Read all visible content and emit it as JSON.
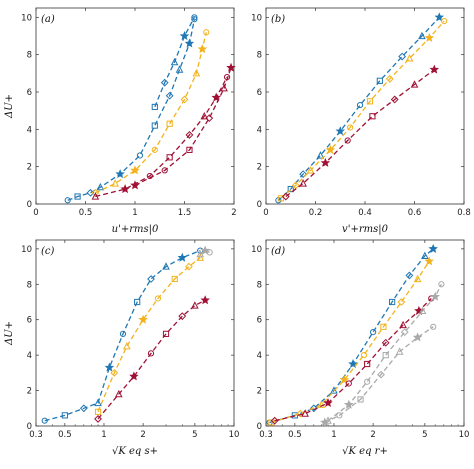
{
  "figure": {
    "colors": {
      "blue": "#1f77b4",
      "orange": "#f2b21c",
      "red": "#a01035",
      "magenta": "#d62bd6",
      "grey": "#a9a9a9",
      "black": "#000000"
    }
  },
  "chart_data": [
    {
      "panel": "a",
      "type": "scatter",
      "tag": "(a)",
      "xlabel": "u'+rms|0",
      "ylabel": "ΔU+",
      "xlim": [
        0,
        2
      ],
      "ylim": [
        0,
        10.5
      ],
      "xscale": "linear",
      "xticks": [
        0,
        0.5,
        1,
        1.5,
        2
      ],
      "yticks": [
        0,
        2,
        4,
        6,
        8,
        10
      ],
      "series": [
        {
          "color": "blue",
          "points": [
            [
              0.32,
              0.2
            ],
            [
              0.42,
              0.4
            ],
            [
              0.55,
              0.6
            ],
            [
              0.65,
              0.9
            ],
            [
              0.85,
              1.6
            ],
            [
              1.05,
              2.6
            ],
            [
              1.2,
              4.2
            ],
            [
              1.35,
              5.8
            ],
            [
              1.45,
              7.2
            ],
            [
              1.55,
              8.6
            ],
            [
              1.6,
              9.9
            ]
          ]
        },
        {
          "color": "blue",
          "points": [
            [
              1.2,
              5.2
            ],
            [
              1.3,
              6.5
            ],
            [
              1.4,
              7.6
            ],
            [
              1.5,
              9.0
            ],
            [
              1.6,
              10.0
            ]
          ]
        },
        {
          "color": "orange",
          "points": [
            [
              0.6,
              0.6
            ],
            [
              0.8,
              1.1
            ],
            [
              1.0,
              1.8
            ],
            [
              1.2,
              2.9
            ],
            [
              1.35,
              4.3
            ],
            [
              1.5,
              5.6
            ],
            [
              1.62,
              7.0
            ],
            [
              1.68,
              8.3
            ],
            [
              1.72,
              9.2
            ]
          ]
        },
        {
          "color": "red",
          "points": [
            [
              0.6,
              0.4
            ],
            [
              0.9,
              0.8
            ],
            [
              1.15,
              1.5
            ],
            [
              1.35,
              2.5
            ],
            [
              1.55,
              3.7
            ],
            [
              1.7,
              4.7
            ],
            [
              1.82,
              5.7
            ],
            [
              1.93,
              6.8
            ]
          ]
        },
        {
          "color": "red",
          "points": [
            [
              1.0,
              1.0
            ],
            [
              1.3,
              1.8
            ],
            [
              1.55,
              2.9
            ],
            [
              1.75,
              4.6
            ],
            [
              1.9,
              6.2
            ],
            [
              1.97,
              7.3
            ]
          ]
        }
      ]
    },
    {
      "panel": "b",
      "type": "scatter",
      "tag": "(b)",
      "xlabel": "v'+rms|0",
      "ylabel": "",
      "xlim": [
        0,
        0.8
      ],
      "ylim": [
        0,
        10.5
      ],
      "xscale": "linear",
      "xticks": [
        0,
        0.2,
        0.4,
        0.6,
        0.8
      ],
      "yticks": [
        0,
        2,
        4,
        6,
        8,
        10
      ],
      "series": [
        {
          "color": "blue",
          "points": [
            [
              0.05,
              0.2
            ],
            [
              0.1,
              0.8
            ],
            [
              0.15,
              1.6
            ],
            [
              0.22,
              2.6
            ],
            [
              0.3,
              3.9
            ],
            [
              0.38,
              5.3
            ],
            [
              0.46,
              6.6
            ],
            [
              0.55,
              7.9
            ],
            [
              0.63,
              9.0
            ],
            [
              0.7,
              10.0
            ]
          ]
        },
        {
          "color": "orange",
          "points": [
            [
              0.06,
              0.3
            ],
            [
              0.12,
              1.0
            ],
            [
              0.18,
              1.8
            ],
            [
              0.26,
              2.9
            ],
            [
              0.34,
              4.1
            ],
            [
              0.42,
              5.5
            ],
            [
              0.5,
              6.7
            ],
            [
              0.58,
              7.8
            ],
            [
              0.66,
              8.9
            ],
            [
              0.72,
              9.8
            ]
          ]
        },
        {
          "color": "red",
          "points": [
            [
              0.08,
              0.4
            ],
            [
              0.15,
              1.1
            ],
            [
              0.24,
              2.2
            ],
            [
              0.33,
              3.4
            ],
            [
              0.43,
              4.7
            ],
            [
              0.52,
              5.6
            ],
            [
              0.6,
              6.4
            ],
            [
              0.68,
              7.2
            ]
          ]
        }
      ]
    },
    {
      "panel": "c",
      "type": "scatter",
      "tag": "(c)",
      "xlabel": "√K eq s+",
      "ylabel": "ΔU+",
      "xlim": [
        0.3,
        10
      ],
      "ylim": [
        0,
        10.5
      ],
      "xscale": "log",
      "xticks": [
        0.3,
        0.5,
        1,
        2,
        5,
        10
      ],
      "yticks": [
        0,
        2,
        4,
        6,
        8,
        10
      ],
      "series": [
        {
          "color": "blue",
          "points": [
            [
              0.35,
              0.3
            ],
            [
              0.5,
              0.6
            ],
            [
              0.7,
              1.0
            ],
            [
              0.9,
              1.3
            ],
            [
              1.1,
              3.3
            ],
            [
              1.4,
              5.2
            ],
            [
              1.8,
              7.0
            ],
            [
              2.3,
              8.3
            ],
            [
              3.0,
              9.0
            ],
            [
              4.0,
              9.5
            ],
            [
              5.5,
              9.9
            ]
          ]
        },
        {
          "color": "orange",
          "points": [
            [
              0.9,
              0.8
            ],
            [
              1.2,
              3.0
            ],
            [
              1.5,
              4.5
            ],
            [
              2.0,
              6.0
            ],
            [
              2.6,
              7.2
            ],
            [
              3.5,
              8.3
            ],
            [
              4.5,
              9.0
            ],
            [
              5.5,
              9.5
            ]
          ]
        },
        {
          "color": "red",
          "points": [
            [
              0.9,
              0.4
            ],
            [
              1.3,
              1.8
            ],
            [
              1.7,
              2.8
            ],
            [
              2.3,
              4.1
            ],
            [
              3.0,
              5.2
            ],
            [
              4.0,
              6.2
            ],
            [
              5.0,
              6.8
            ],
            [
              6.0,
              7.1
            ]
          ]
        },
        {
          "color": "grey",
          "points": [
            [
              5.5,
              9.7
            ],
            [
              6.0,
              9.9
            ],
            [
              6.5,
              9.8
            ]
          ]
        }
      ]
    },
    {
      "panel": "d",
      "type": "scatter",
      "tag": "(d)",
      "xlabel": "√K eq r+",
      "ylabel": "",
      "xlim": [
        0.3,
        10
      ],
      "ylim": [
        0,
        10.5
      ],
      "xscale": "log",
      "xticks": [
        0.3,
        0.5,
        1,
        2,
        5,
        10
      ],
      "yticks": [
        0,
        2,
        4,
        6,
        8,
        10
      ],
      "series": [
        {
          "color": "blue",
          "points": [
            [
              0.32,
              0.2
            ],
            [
              0.5,
              0.6
            ],
            [
              0.7,
              1.0
            ],
            [
              1.0,
              2.0
            ],
            [
              1.4,
              3.5
            ],
            [
              2.0,
              5.3
            ],
            [
              2.8,
              7.0
            ],
            [
              3.8,
              8.5
            ],
            [
              5.0,
              9.6
            ],
            [
              5.8,
              10.0
            ]
          ]
        },
        {
          "color": "orange",
          "points": [
            [
              0.33,
              0.2
            ],
            [
              0.55,
              0.7
            ],
            [
              0.8,
              1.2
            ],
            [
              1.2,
              2.6
            ],
            [
              1.7,
              4.0
            ],
            [
              2.4,
              5.6
            ],
            [
              3.3,
              7.0
            ],
            [
              4.4,
              8.3
            ],
            [
              5.4,
              9.3
            ]
          ]
        },
        {
          "color": "red",
          "points": [
            [
              0.35,
              0.3
            ],
            [
              0.6,
              0.7
            ],
            [
              0.9,
              1.3
            ],
            [
              1.3,
              2.4
            ],
            [
              1.8,
              3.5
            ],
            [
              2.5,
              4.7
            ],
            [
              3.4,
              5.7
            ],
            [
              4.5,
              6.5
            ],
            [
              5.6,
              7.2
            ]
          ]
        },
        {
          "color": "grey",
          "points": [
            [
              0.9,
              0.3
            ],
            [
              1.3,
              1.2
            ],
            [
              1.8,
              2.5
            ],
            [
              2.5,
              4.0
            ],
            [
              3.5,
              5.3
            ],
            [
              4.8,
              6.5
            ],
            [
              6.0,
              7.3
            ],
            [
              6.7,
              8.0
            ]
          ]
        },
        {
          "color": "grey",
          "points": [
            [
              0.85,
              0.2
            ],
            [
              1.1,
              0.6
            ],
            [
              1.6,
              1.5
            ],
            [
              2.3,
              2.9
            ],
            [
              3.2,
              4.2
            ],
            [
              4.4,
              5.0
            ],
            [
              5.8,
              5.6
            ]
          ]
        }
      ]
    }
  ]
}
